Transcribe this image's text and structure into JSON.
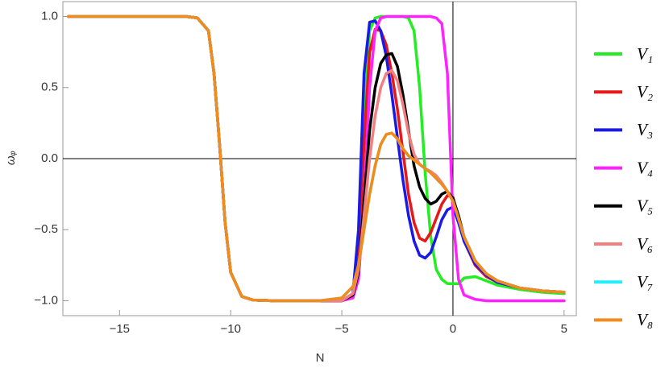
{
  "chart_data": {
    "type": "line",
    "x_label": "N",
    "y_label": "ωᵩ",
    "xlim": [
      -17.55,
      5.55
    ],
    "ylim": [
      -1.105,
      1.105
    ],
    "xticks": [
      {
        "value": -15,
        "label": "−15"
      },
      {
        "value": -10,
        "label": "−10"
      },
      {
        "value": -5,
        "label": "−5"
      },
      0,
      5
    ],
    "yticks": [
      {
        "value": -1,
        "label": "−1.0"
      },
      {
        "value": -0.5,
        "label": "−0.5"
      },
      {
        "value": 0,
        "label": "0.0"
      },
      {
        "value": 0.5,
        "label": "0.5"
      },
      {
        "value": 1,
        "label": "1.0"
      }
    ],
    "x": [
      -17.3,
      -12,
      -11.5,
      -11,
      -10.75,
      -10.5,
      -10.25,
      -10,
      -9.5,
      -9,
      -8,
      -6,
      -5,
      -4.5,
      -4.25,
      -4,
      -3.75,
      -3.5,
      -3.25,
      -3,
      -2.75,
      -2.5,
      -2.25,
      -2,
      -1.75,
      -1.5,
      -1.25,
      -1,
      -0.75,
      -0.5,
      -0.25,
      0,
      0.25,
      0.5,
      1,
      1.5,
      2,
      3,
      4,
      5
    ],
    "series": [
      {
        "name": "V₁",
        "color": "#22ee22",
        "values": [
          1,
          1,
          0.99,
          0.9,
          0.6,
          0.1,
          -0.45,
          -0.8,
          -0.97,
          -0.995,
          -1,
          -1,
          -1,
          -0.98,
          -0.7,
          0.3,
          0.9,
          0.99,
          1,
          1,
          1,
          1,
          1,
          0.99,
          0.9,
          0.5,
          -0.1,
          -0.55,
          -0.78,
          -0.85,
          -0.88,
          -0.88,
          -0.88,
          -0.84,
          -0.83,
          -0.86,
          -0.89,
          -0.92,
          -0.94,
          -0.95
        ]
      },
      {
        "name": "V₂",
        "color": "#e81818",
        "values": [
          1,
          1,
          0.99,
          0.9,
          0.6,
          0.1,
          -0.45,
          -0.8,
          -0.97,
          -0.995,
          -1,
          -1,
          -1,
          -0.97,
          -0.7,
          0.1,
          0.75,
          0.91,
          0.9,
          0.8,
          0.6,
          0.35,
          0.05,
          -0.25,
          -0.45,
          -0.56,
          -0.58,
          -0.52,
          -0.42,
          -0.32,
          -0.26,
          -0.27,
          -0.42,
          -0.58,
          -0.75,
          -0.83,
          -0.87,
          -0.91,
          -0.93,
          -0.94
        ]
      },
      {
        "name": "V₃",
        "color": "#1a1ae6",
        "values": [
          1,
          1,
          0.99,
          0.9,
          0.6,
          0.1,
          -0.45,
          -0.8,
          -0.97,
          -0.995,
          -1,
          -1,
          -1,
          -0.95,
          -0.5,
          0.6,
          0.96,
          0.97,
          0.9,
          0.72,
          0.45,
          0.15,
          -0.15,
          -0.4,
          -0.58,
          -0.68,
          -0.7,
          -0.66,
          -0.55,
          -0.43,
          -0.36,
          -0.34,
          -0.45,
          -0.58,
          -0.74,
          -0.82,
          -0.87,
          -0.91,
          -0.93,
          -0.94
        ]
      },
      {
        "name": "V₄",
        "color": "#ff22ff",
        "values": [
          1,
          1,
          0.99,
          0.9,
          0.6,
          0.1,
          -0.45,
          -0.8,
          -0.97,
          -0.995,
          -1,
          -1,
          -1,
          -0.98,
          -0.85,
          -0.3,
          0.5,
          0.9,
          0.99,
          1,
          1,
          1,
          1,
          1,
          1,
          1,
          1,
          1,
          0.99,
          0.95,
          0.6,
          -0.4,
          -0.85,
          -0.96,
          -0.99,
          -1,
          -1,
          -1,
          -1,
          -1
        ]
      },
      {
        "name": "V₅",
        "color": "#000000",
        "values": [
          1,
          1,
          0.99,
          0.9,
          0.6,
          0.1,
          -0.45,
          -0.8,
          -0.97,
          -0.995,
          -1,
          -1,
          -1,
          -0.96,
          -0.8,
          -0.3,
          0.2,
          0.5,
          0.67,
          0.73,
          0.74,
          0.65,
          0.45,
          0.2,
          -0.05,
          -0.2,
          -0.28,
          -0.32,
          -0.3,
          -0.25,
          -0.23,
          -0.28,
          -0.4,
          -0.55,
          -0.72,
          -0.81,
          -0.86,
          -0.91,
          -0.93,
          -0.94
        ]
      },
      {
        "name": "V₆",
        "color": "#f28080",
        "values": [
          1,
          1,
          0.99,
          0.9,
          0.6,
          0.1,
          -0.45,
          -0.8,
          -0.97,
          -0.995,
          -1,
          -1,
          -1,
          -0.95,
          -0.78,
          -0.4,
          0,
          0.3,
          0.5,
          0.6,
          0.62,
          0.55,
          0.38,
          0.18,
          0.03,
          -0.04,
          -0.07,
          -0.09,
          -0.12,
          -0.17,
          -0.23,
          -0.3,
          -0.42,
          -0.55,
          -0.72,
          -0.81,
          -0.86,
          -0.91,
          -0.93,
          -0.94
        ]
      },
      {
        "name": "V₇",
        "color": "#22eeff",
        "values": [
          1,
          1,
          0.99,
          0.9,
          0.6,
          0.1,
          -0.45,
          -0.8,
          -0.97,
          -0.995,
          -1,
          -1,
          -0.98,
          -0.9,
          -0.75,
          -0.5,
          -0.25,
          -0.05,
          0.1,
          0.17,
          0.18,
          0.14,
          0.07,
          0.02,
          -0.01,
          -0.04,
          -0.07,
          -0.1,
          -0.14,
          -0.18,
          -0.23,
          -0.3,
          -0.42,
          -0.55,
          -0.72,
          -0.81,
          -0.86,
          -0.91,
          -0.93,
          -0.94
        ]
      },
      {
        "name": "V₈",
        "color": "#f28a1c",
        "values": [
          1,
          1,
          0.99,
          0.9,
          0.6,
          0.1,
          -0.45,
          -0.8,
          -0.97,
          -0.995,
          -1,
          -1,
          -0.98,
          -0.9,
          -0.75,
          -0.5,
          -0.25,
          -0.05,
          0.1,
          0.17,
          0.18,
          0.14,
          0.07,
          0.02,
          -0.01,
          -0.04,
          -0.07,
          -0.1,
          -0.14,
          -0.18,
          -0.23,
          -0.3,
          -0.42,
          -0.55,
          -0.72,
          -0.81,
          -0.86,
          -0.91,
          -0.93,
          -0.94
        ]
      }
    ]
  }
}
